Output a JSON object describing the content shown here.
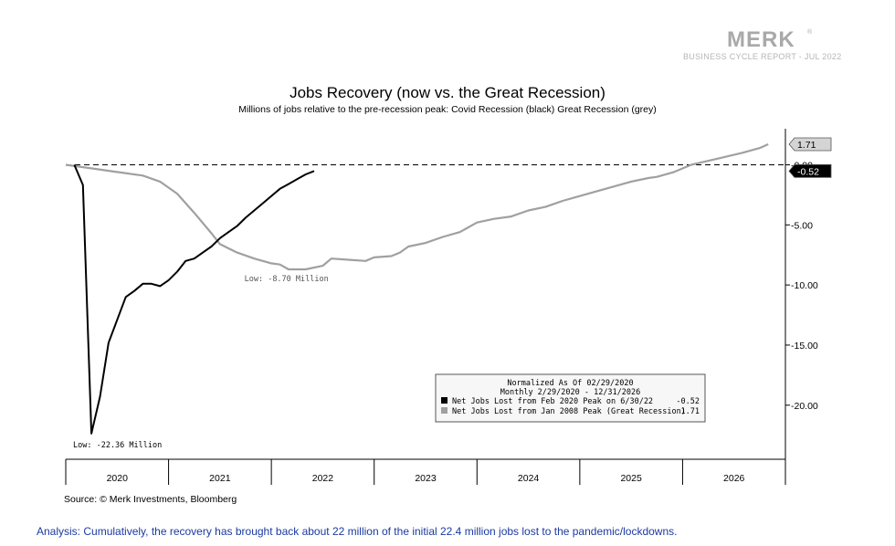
{
  "logo": {
    "word": "MERK",
    "mark": "®",
    "subtitle": "BUSINESS CYCLE REPORT - JUL 2022"
  },
  "chart_data": {
    "type": "line",
    "title": "Jobs Recovery (now vs. the Great Recession)",
    "subtitle": "Millions of jobs relative to the pre-recession peak: Covid Recession (black) Great Recession (grey)",
    "x_axis": {
      "type": "date",
      "range": [
        "2020-01",
        "2026-12"
      ],
      "tick_labels": [
        "2020",
        "2021",
        "2022",
        "2023",
        "2024",
        "2025",
        "2026"
      ]
    },
    "y_axis": {
      "position": "right",
      "range": [
        -24.5,
        3.0
      ],
      "ticks": [
        0,
        -5,
        -10,
        -15,
        -20
      ],
      "tick_labels": [
        "0.00",
        "-5.00",
        "-10.00",
        "-15.00",
        "-20.00"
      ]
    },
    "reference_line": {
      "value": 0,
      "style": "dashed"
    },
    "series": [
      {
        "name": "Net Jobs Lost from Feb 2020 Peak on 6/30/22",
        "color": "#000000",
        "last_value": "-0.52",
        "points": [
          [
            "2020-02",
            0.0
          ],
          [
            "2020-03",
            -1.68
          ],
          [
            "2020-04",
            -22.36
          ],
          [
            "2020-05",
            -19.3
          ],
          [
            "2020-06",
            -14.8
          ],
          [
            "2020-07",
            -12.9
          ],
          [
            "2020-08",
            -11.0
          ],
          [
            "2020-09",
            -10.5
          ],
          [
            "2020-10",
            -9.9
          ],
          [
            "2020-11",
            -9.9
          ],
          [
            "2020-12",
            -10.1
          ],
          [
            "2021-01",
            -9.6
          ],
          [
            "2021-02",
            -8.9
          ],
          [
            "2021-03",
            -8.0
          ],
          [
            "2021-04",
            -7.8
          ],
          [
            "2021-05",
            -7.3
          ],
          [
            "2021-06",
            -6.8
          ],
          [
            "2021-07",
            -6.1
          ],
          [
            "2021-08",
            -5.6
          ],
          [
            "2021-09",
            -5.1
          ],
          [
            "2021-10",
            -4.4
          ],
          [
            "2021-11",
            -3.8
          ],
          [
            "2021-12",
            -3.2
          ],
          [
            "2022-01",
            -2.6
          ],
          [
            "2022-02",
            -2.0
          ],
          [
            "2022-03",
            -1.6
          ],
          [
            "2022-04",
            -1.2
          ],
          [
            "2022-05",
            -0.8
          ],
          [
            "2022-06",
            -0.52
          ]
        ]
      },
      {
        "name": "Net Jobs Lost from Jan 2008 Peak (Great Recession)",
        "color": "#a0a0a0",
        "last_value": "1.71",
        "points": [
          [
            "2020-01",
            0.0
          ],
          [
            "2020-04",
            -0.3
          ],
          [
            "2020-07",
            -0.6
          ],
          [
            "2020-10",
            -0.9
          ],
          [
            "2020-12",
            -1.4
          ],
          [
            "2021-02",
            -2.4
          ],
          [
            "2021-04",
            -4.0
          ],
          [
            "2021-06",
            -5.7
          ],
          [
            "2021-07",
            -6.6
          ],
          [
            "2021-09",
            -7.3
          ],
          [
            "2021-11",
            -7.8
          ],
          [
            "2022-01",
            -8.2
          ],
          [
            "2022-02",
            -8.3
          ],
          [
            "2022-03",
            -8.7
          ],
          [
            "2022-05",
            -8.7
          ],
          [
            "2022-07",
            -8.4
          ],
          [
            "2022-08",
            -7.8
          ],
          [
            "2022-10",
            -7.9
          ],
          [
            "2022-12",
            -8.0
          ],
          [
            "2023-01",
            -7.7
          ],
          [
            "2023-03",
            -7.6
          ],
          [
            "2023-04",
            -7.3
          ],
          [
            "2023-05",
            -6.8
          ],
          [
            "2023-07",
            -6.5
          ],
          [
            "2023-09",
            -6.0
          ],
          [
            "2023-11",
            -5.6
          ],
          [
            "2024-01",
            -4.8
          ],
          [
            "2024-03",
            -4.5
          ],
          [
            "2024-05",
            -4.3
          ],
          [
            "2024-07",
            -3.8
          ],
          [
            "2024-09",
            -3.5
          ],
          [
            "2024-11",
            -3.0
          ],
          [
            "2025-01",
            -2.6
          ],
          [
            "2025-04",
            -2.0
          ],
          [
            "2025-07",
            -1.4
          ],
          [
            "2025-09",
            -1.1
          ],
          [
            "2025-10",
            -1.0
          ],
          [
            "2025-12",
            -0.6
          ],
          [
            "2026-02",
            0.0
          ],
          [
            "2026-05",
            0.5
          ],
          [
            "2026-08",
            1.0
          ],
          [
            "2026-10",
            1.4
          ],
          [
            "2026-11",
            1.71
          ]
        ]
      }
    ],
    "annotations": [
      {
        "text": "Low: -22.36 Million",
        "x": "2020-01",
        "y": -23.5
      },
      {
        "text": "Low: -8.70 Million",
        "x": "2021-09",
        "y": -9.7
      }
    ],
    "legend": {
      "placement": "bottom-right",
      "header_lines": [
        "Normalized As Of 02/29/2020",
        "Monthly 2/29/2020 - 12/31/2026"
      ],
      "entries": [
        {
          "label": "Net Jobs Lost from Feb 2020 Peak on 6/30/22",
          "value": "-0.52",
          "color": "#000000"
        },
        {
          "label": "Net Jobs Lost from Jan 2008 Peak (Great Recession)",
          "value": "1.71",
          "color": "#a0a0a0"
        }
      ]
    },
    "grid": false
  },
  "source": "Source: © Merk Investments, Bloomberg",
  "analysis": "Analysis: Cumulatively, the recovery has brought back about 22 million of the initial 22.4 million jobs lost to the pandemic/lockdowns."
}
